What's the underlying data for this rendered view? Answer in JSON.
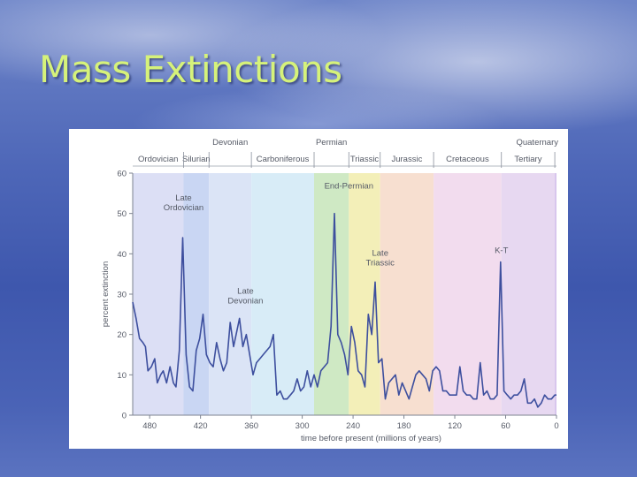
{
  "slide": {
    "title": "Mass Extinctions"
  },
  "chart_data": {
    "type": "line",
    "title": "",
    "xlabel": "time before present (millions of years)",
    "ylabel": "percent extinction",
    "xlim": [
      500,
      0
    ],
    "ylim": [
      0,
      60
    ],
    "x_reversed": true,
    "x_ticks": [
      480,
      420,
      360,
      300,
      240,
      180,
      120,
      60,
      0
    ],
    "y_ticks": [
      0,
      10,
      20,
      30,
      40,
      50,
      60
    ],
    "periods": [
      {
        "name": "Ordovician",
        "start": 500,
        "end": 440,
        "color": "#dcdff5",
        "row": "lower"
      },
      {
        "name": "Silurian",
        "start": 440,
        "end": 410,
        "color": "#c9d6f3",
        "row": "lower"
      },
      {
        "name": "Devonian",
        "start": 410,
        "end": 360,
        "color": "#dbe4f6",
        "row": "upper"
      },
      {
        "name": "Carboniferous",
        "start": 360,
        "end": 286,
        "color": "#d8ecf7",
        "row": "lower"
      },
      {
        "name": "Permian",
        "start": 286,
        "end": 245,
        "color": "#cfe9c4",
        "row": "upper"
      },
      {
        "name": "Triassic",
        "start": 245,
        "end": 208,
        "color": "#f3efb8",
        "row": "lower"
      },
      {
        "name": "Jurassic",
        "start": 208,
        "end": 145,
        "color": "#f7dfd0",
        "row": "lower"
      },
      {
        "name": "Cretaceous",
        "start": 145,
        "end": 65,
        "color": "#f2dcee",
        "row": "lower"
      },
      {
        "name": "Tertiary",
        "start": 65,
        "end": 2,
        "color": "#e7d8f1",
        "row": "lower"
      },
      {
        "name": "Quaternary",
        "start": 2,
        "end": 0,
        "color": "#d6c4ec",
        "row": "upper"
      }
    ],
    "series": [
      {
        "name": "percent extinction",
        "x": [
          500,
          496,
          492,
          488,
          485,
          482,
          478,
          474,
          471,
          467,
          464,
          460,
          456,
          452,
          449,
          445,
          441,
          437,
          433,
          429,
          425,
          421,
          417,
          413,
          409,
          405,
          401,
          397,
          393,
          389,
          385,
          381,
          378,
          374,
          370,
          366,
          362,
          358,
          354,
          350,
          346,
          342,
          338,
          334,
          330,
          326,
          322,
          318,
          314,
          310,
          306,
          302,
          298,
          294,
          290,
          286,
          282,
          278,
          274,
          270,
          266,
          262,
          258,
          254,
          250,
          246,
          242,
          238,
          234,
          230,
          226,
          222,
          218,
          214,
          210,
          206,
          202,
          198,
          194,
          190,
          186,
          182,
          178,
          174,
          170,
          166,
          162,
          158,
          154,
          150,
          146,
          142,
          138,
          134,
          130,
          126,
          122,
          118,
          114,
          110,
          106,
          102,
          98,
          94,
          90,
          86,
          82,
          78,
          74,
          70,
          66,
          62,
          58,
          54,
          50,
          46,
          42,
          38,
          34,
          30,
          26,
          22,
          18,
          14,
          10,
          6,
          2,
          0
        ],
        "y": [
          28,
          24,
          19,
          18,
          17,
          11,
          12,
          14,
          8,
          10,
          11,
          8,
          12,
          8,
          7,
          16,
          44,
          15,
          7,
          6,
          16,
          19,
          25,
          15,
          13,
          12,
          18,
          14,
          11,
          13,
          23,
          17,
          20,
          24,
          17,
          20,
          15,
          10,
          13,
          14,
          15,
          16,
          17,
          20,
          5,
          6,
          4,
          4,
          5,
          6,
          9,
          6,
          7,
          11,
          7,
          10,
          7,
          11,
          12,
          13,
          22,
          50,
          20,
          18,
          15,
          10,
          22,
          18,
          11,
          10,
          7,
          25,
          20,
          33,
          13,
          14,
          4,
          8,
          9,
          10,
          5,
          8,
          6,
          4,
          7,
          10,
          11,
          10,
          9,
          6,
          11,
          12,
          11,
          6,
          6,
          5,
          5,
          5,
          12,
          6,
          5,
          5,
          4,
          4,
          13,
          5,
          6,
          4,
          4,
          5,
          38,
          6,
          5,
          4,
          5,
          5,
          6,
          9,
          3,
          3,
          4,
          2,
          3,
          5,
          4,
          4,
          5,
          5
        ]
      }
    ],
    "annotations": [
      {
        "text": "Late Ordovician",
        "x": 440,
        "y": 44
      },
      {
        "text": "Late Devonian",
        "x": 367,
        "y": 24
      },
      {
        "text": "End-Permian",
        "x": 245,
        "y": 50
      },
      {
        "text": "Late Triassic",
        "x": 208,
        "y": 33
      },
      {
        "text": "K-T",
        "x": 65,
        "y": 38
      }
    ]
  }
}
